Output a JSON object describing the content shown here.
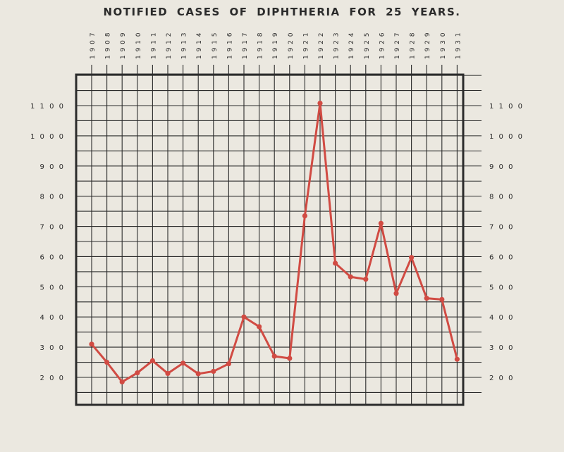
{
  "chart_data": {
    "type": "line",
    "title": "NOTIFIED CASES OF DIPHTHERIA FOR 25 YEARS.",
    "xlabel": "",
    "ylabel": "",
    "x": [
      "1907",
      "1908",
      "1909",
      "1910",
      "1911",
      "1912",
      "1913",
      "1914",
      "1915",
      "1916",
      "1917",
      "1918",
      "1919",
      "1920",
      "1921",
      "1922",
      "1923",
      "1924",
      "1925",
      "1926",
      "1927",
      "1928",
      "1929",
      "1930",
      "1931"
    ],
    "series": [
      {
        "values": [
          310,
          250,
          185,
          215,
          255,
          213,
          247,
          212,
          220,
          245,
          400,
          368,
          270,
          263,
          735,
          1108,
          578,
          533,
          525,
          710,
          478,
          597,
          462,
          458,
          260
        ]
      }
    ],
    "yticks": [
      200,
      300,
      400,
      500,
      600,
      700,
      800,
      900,
      1000,
      1100
    ],
    "yticks_labels": [
      "2 0 0",
      "3 0 0",
      "4 0 0",
      "5 0 0",
      "6 0 0",
      "7 0 0",
      "8 0 0",
      "9 0 0",
      "1 0 0 0",
      "1 1 0 0"
    ],
    "ylim": [
      100,
      1200
    ],
    "grid": true,
    "line_color": "#d14b43",
    "grid_color": "#2b2b2b"
  }
}
